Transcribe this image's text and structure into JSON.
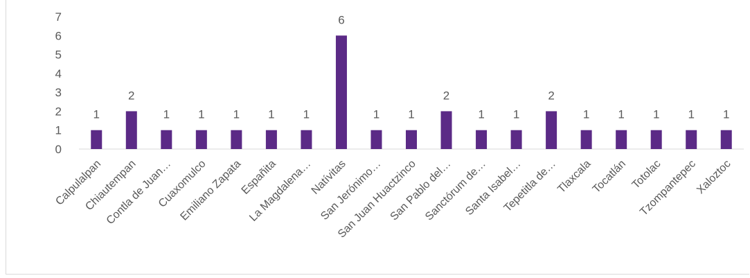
{
  "colors": {
    "bar": "#5b2a86",
    "axis": "#d9d9d9",
    "text": "#595959"
  },
  "chart_data": {
    "type": "bar",
    "categories": [
      "Calpulalpan",
      "Chiautempan",
      "Contla de Juan…",
      "Cuaxomulco",
      "Emiliano Zapata",
      "Españita",
      "La Magdalena…",
      "Natívitas",
      "San Jerónimo…",
      "San Juan Huactzinco",
      "San Pablo del…",
      "Sanctórum de…",
      "Santa Isabel…",
      "Tepetitla de…",
      "Tlaxcala",
      "Tocatlán",
      "Totolac",
      "Tzompantepec",
      "Xaloztoc"
    ],
    "values": [
      1,
      2,
      1,
      1,
      1,
      1,
      1,
      6,
      1,
      1,
      2,
      1,
      1,
      2,
      1,
      1,
      1,
      1,
      1
    ],
    "ylim": [
      0,
      7
    ],
    "yticks": [
      0,
      1,
      2,
      3,
      4,
      5,
      6,
      7
    ],
    "data_labels": true,
    "grid": false,
    "legend": "none"
  }
}
